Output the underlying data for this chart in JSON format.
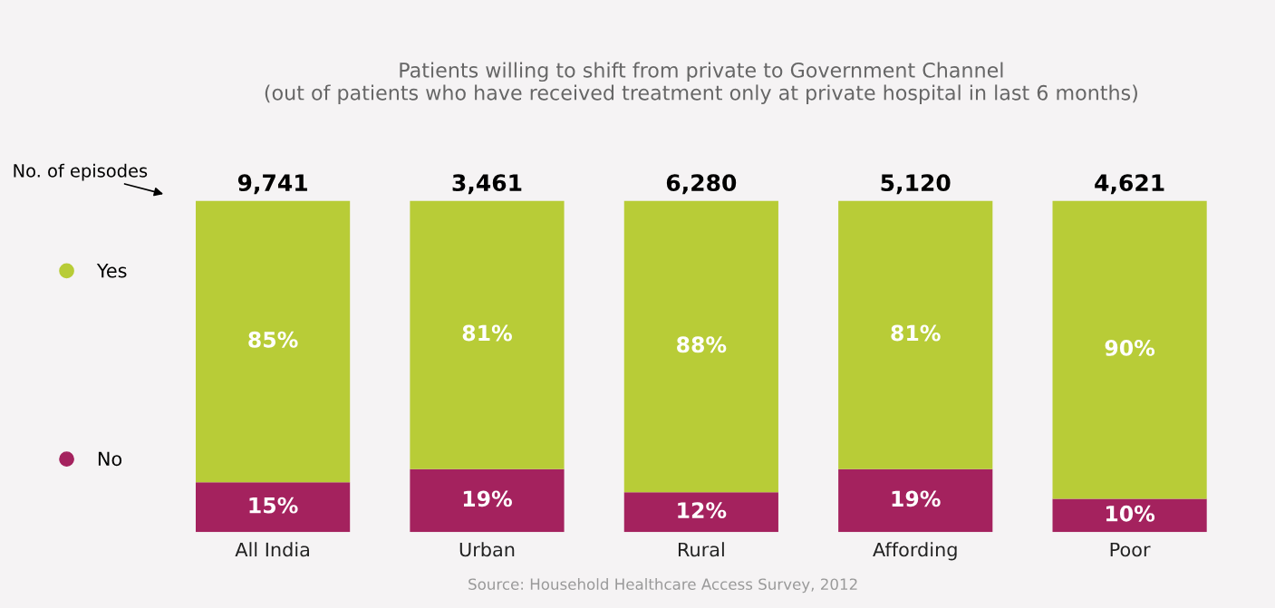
{
  "chart_data": {
    "type": "bar",
    "stacked": true,
    "title": "Patients willing to shift from private to Government Channel\n(out of patients who have received treatment only at private hospital in last 6 months)",
    "categories": [
      "All India",
      "Urban",
      "Rural",
      "Affording",
      "Poor"
    ],
    "series": [
      {
        "name": "No",
        "color": "#a4225e",
        "values": [
          15,
          19,
          12,
          19,
          10
        ],
        "value_labels": [
          "15%",
          "19%",
          "12%",
          "19%",
          "10%"
        ]
      },
      {
        "name": "Yes",
        "color": "#b8cc37",
        "values": [
          85,
          81,
          88,
          81,
          90
        ],
        "value_labels": [
          "85%",
          "81%",
          "88%",
          "81%",
          "90%"
        ]
      }
    ],
    "legend": "left",
    "grid": false,
    "annotations": [
      "No. of episodes",
      "Source: Household Healthcare Access Survey, 2012",
      {
        "text": "9,741",
        "x": "All India",
        "y": 100
      },
      {
        "text": "3,461",
        "x": "Urban",
        "y": 100
      },
      {
        "text": "6,280",
        "x": "Rural",
        "y": 100
      },
      {
        "text": "5,120",
        "x": "Affording",
        "y": 100
      },
      {
        "text": "4,621",
        "x": "Poor",
        "y": 100
      }
    ]
  }
}
